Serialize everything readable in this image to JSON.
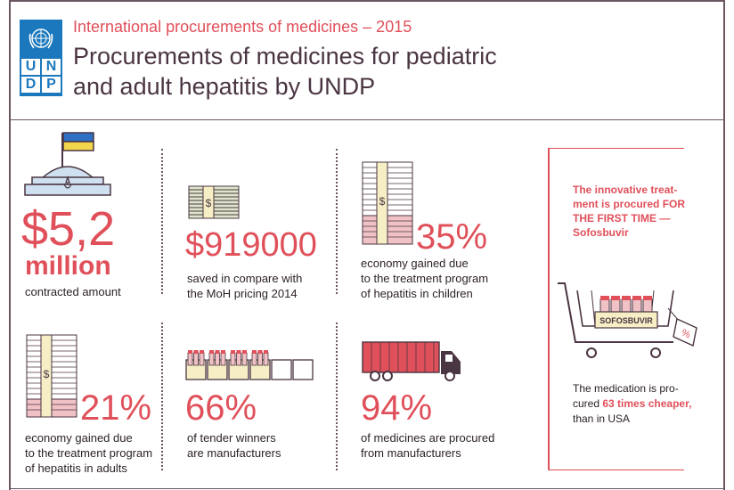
{
  "header": {
    "kicker": "International procurements of medicines – 2015",
    "title_line1": "Procurements of medicines for pediatric",
    "title_line2": "and adult hepatitis by UNDP",
    "logo_letters": [
      "U",
      "N",
      "D",
      "P"
    ]
  },
  "stats": {
    "contracted": {
      "value": "$5,2",
      "unit": "million",
      "caption": "contracted amount"
    },
    "saved": {
      "value": "$919000",
      "caption_line1": "saved in compare with",
      "caption_line2": "the MoH pricing 2014"
    },
    "children": {
      "value": "35%",
      "caption_line1": "economy gained due",
      "caption_line2": "to the treatment program",
      "caption_line3": "of hepatitis in children"
    },
    "adults": {
      "value": "21%",
      "caption_line1": "economy gained due",
      "caption_line2": "to the treatment program",
      "caption_line3": "of hepatitis in adults"
    },
    "winners": {
      "value": "66%",
      "caption_line1": "of tender winners",
      "caption_line2": "are manufacturers",
      "filled_boxes": 4,
      "total_boxes": 6
    },
    "manufacturers": {
      "value": "94%",
      "caption_line1": "of medicines are procured",
      "caption_line2": "from manufacturers"
    }
  },
  "sidebar": {
    "top_line1": "The innovative treat-",
    "top_line2": "ment is procured FOR",
    "top_line3": "THE FIRST TIME —",
    "top_line4": "Sofosbuvir",
    "cart_label": "SOFOSBUVIR",
    "tag_symbol": "%",
    "bottom_pre1": "The medication is pro-",
    "bottom_pre2": "cured ",
    "bottom_highlight": "63 times cheaper,",
    "bottom_post": "than in USA"
  },
  "colors": {
    "accent": "#e0505a",
    "dark": "#4a3542",
    "un_blue": "#1b78bd",
    "flag_blue": "#2f6fc4",
    "flag_yellow": "#f2d64b"
  },
  "icons": [
    "un-emblem-icon",
    "parliament-icon",
    "money-stack-icon",
    "truck-icon",
    "cart-icon",
    "price-tag-icon"
  ]
}
